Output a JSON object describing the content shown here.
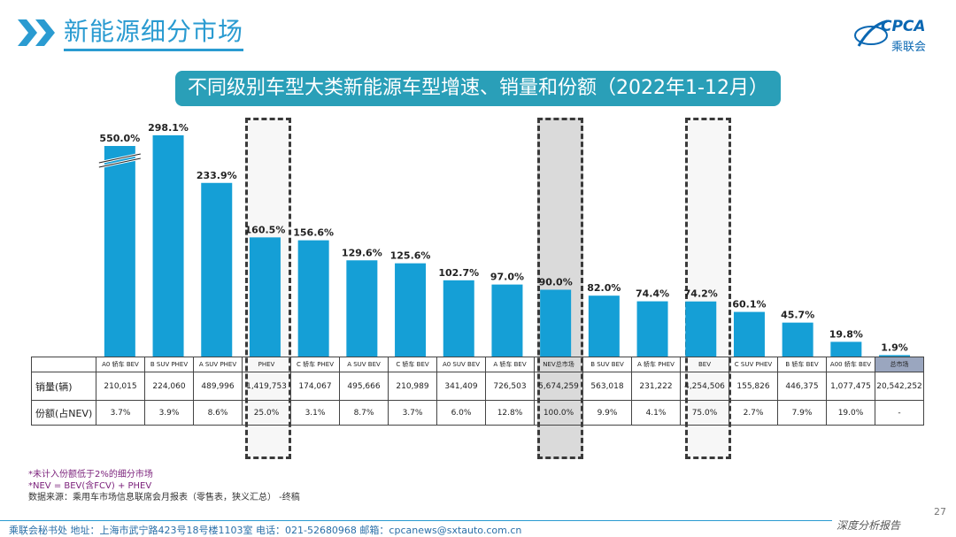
{
  "header": {
    "title": "新能源细分市场"
  },
  "logo": {
    "text": "CPCA",
    "sub": "乘联会"
  },
  "colors": {
    "bar": "#159fd6",
    "accent": "#2a9bd1",
    "title_bg": "#2a9fb8"
  },
  "chart_data": {
    "type": "bar",
    "title": "不同级别车型大类新能源车型增速、销量和份额（2022年1-12月）",
    "categories": [
      "A0 轿车 BEV",
      "B SUV PHEV",
      "A SUV PHEV",
      "PHEV",
      "C 轿车 PHEV",
      "A SUV BEV",
      "C 轿车 BEV",
      "A0 SUV BEV",
      "A 轿车 BEV",
      "NEV总市场",
      "B SUV BEV",
      "A 轿车 PHEV",
      "BEV",
      "C SUV PHEV",
      "B 轿车 BEV",
      "A00 轿车 BEV",
      "总市场"
    ],
    "series": [
      {
        "name": "增速",
        "values": [
          550.0,
          298.1,
          233.9,
          160.5,
          156.6,
          129.6,
          125.6,
          102.7,
          97.0,
          90.0,
          82.0,
          74.4,
          74.2,
          60.1,
          45.7,
          19.8,
          1.9
        ]
      }
    ],
    "value_labels": [
      "550.0%",
      "298.1%",
      "233.9%",
      "160.5%",
      "156.6%",
      "129.6%",
      "125.6%",
      "102.7%",
      "97.0%",
      "90.0%",
      "82.0%",
      "74.4%",
      "74.2%",
      "60.1%",
      "45.7%",
      "19.8%",
      "1.9%"
    ],
    "axis_break": true
  },
  "table": {
    "row_labels": [
      "销量(辆)",
      "份额(占NEV)"
    ],
    "sales": [
      "210,015",
      "224,060",
      "489,996",
      "1,419,753",
      "174,067",
      "495,666",
      "210,989",
      "341,409",
      "726,503",
      "5,674,259",
      "563,018",
      "231,222",
      "4,254,506",
      "155,826",
      "446,375",
      "1,077,475",
      "20,542,252"
    ],
    "share": [
      "3.7%",
      "3.9%",
      "8.6%",
      "25.0%",
      "3.1%",
      "8.7%",
      "3.7%",
      "6.0%",
      "12.8%",
      "100.0%",
      "9.9%",
      "4.1%",
      "75.0%",
      "2.7%",
      "7.9%",
      "19.0%",
      "-"
    ]
  },
  "notes": {
    "n1": "*未计入份额低于2%的细分市场",
    "n2": "*NEV = BEV(含FCV) + PHEV",
    "n3": "数据来源：乘用车市场信息联席会月报表（零售表，狭义汇总） -终稿"
  },
  "footer": {
    "text": "乘联会秘书处   地址：上海市武宁路423号18号楼1103室   电话：021-52680968   邮箱：cpcanews@sxtauto.com.cn",
    "report": "深度分析报告",
    "page": "27"
  }
}
